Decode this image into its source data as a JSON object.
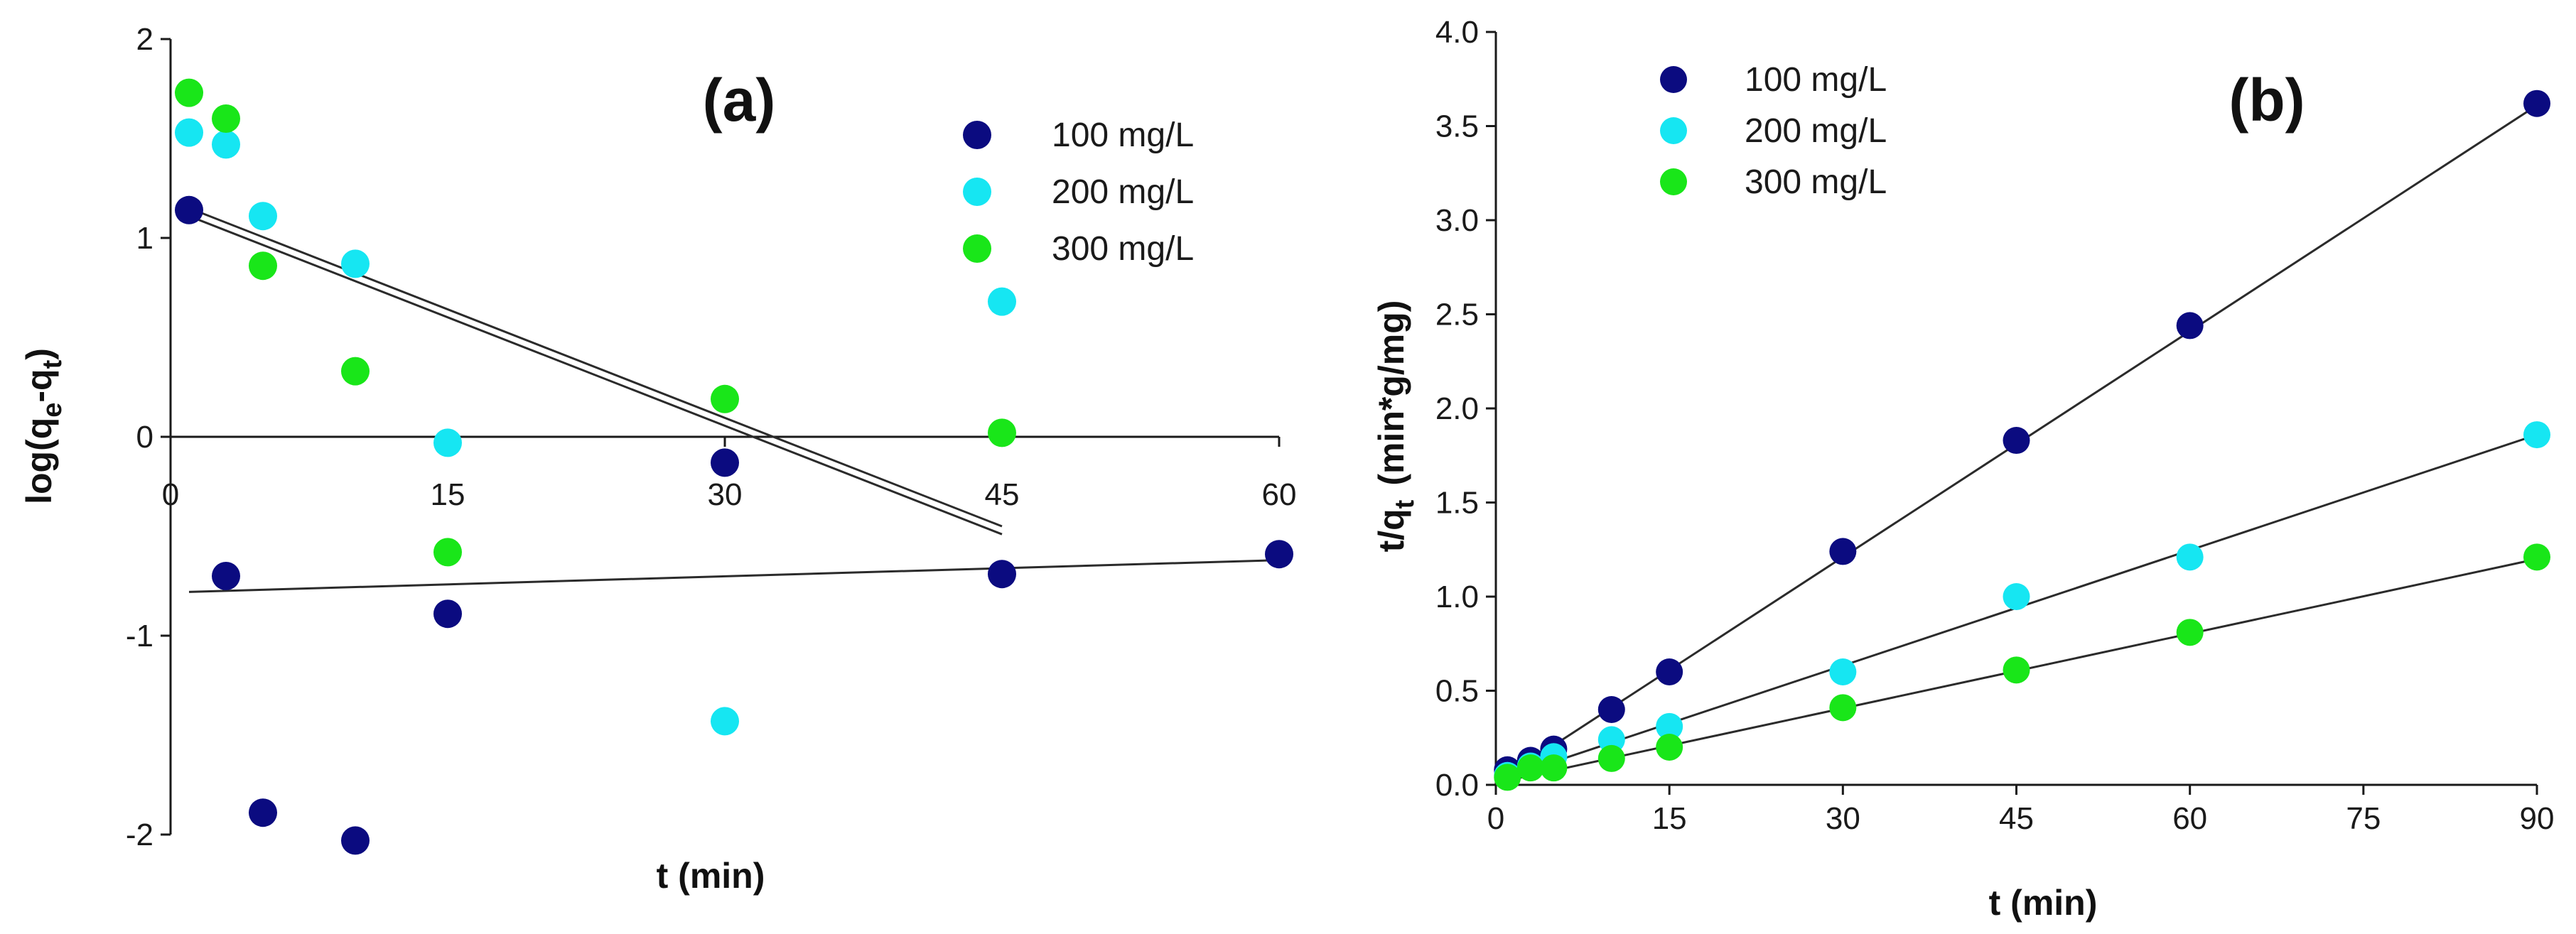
{
  "colors": {
    "100 mg/L": "#0b0b80",
    "200 mg/L": "#16e6f2",
    "300 mg/L": "#19e619",
    "axis": "#1a1a1a",
    "fit_line": "#2b2b2b"
  },
  "chart_data": [
    {
      "type": "scatter",
      "panel": "(a)",
      "title": "",
      "xlabel": "t (min)",
      "ylabel": "log(qe-qt)",
      "ylabel_main": "log(q",
      "ylabel_sub1": "e",
      "ylabel_mid": "-q",
      "ylabel_sub2": "t",
      "ylabel_close": ")",
      "xlim": [
        0,
        60
      ],
      "ylim": [
        -2,
        2
      ],
      "xticks": [
        "0",
        "15",
        "30",
        "45",
        "60"
      ],
      "yticks": [
        "-2",
        "-1",
        "0",
        "1",
        "2"
      ],
      "grid": false,
      "legend_position": "top-right",
      "series": [
        {
          "name": "100 mg/L",
          "x": [
            1,
            3,
            5,
            10,
            15,
            30,
            45,
            60
          ],
          "y": [
            1.14,
            -0.7,
            -1.89,
            -2.03,
            -0.89,
            -0.13,
            -0.69,
            -0.59
          ]
        },
        {
          "name": "200 mg/L",
          "x": [
            1,
            3,
            5,
            10,
            15,
            30,
            45
          ],
          "y": [
            1.53,
            1.47,
            1.11,
            0.87,
            -0.03,
            -1.43,
            0.68
          ]
        },
        {
          "name": "300 mg/L",
          "x": [
            1,
            3,
            5,
            10,
            15,
            30,
            45
          ],
          "y": [
            1.73,
            1.6,
            0.86,
            0.33,
            -0.58,
            0.19,
            0.02
          ]
        }
      ],
      "fit_lines": [
        {
          "x": [
            1,
            60
          ],
          "y": [
            -0.78,
            -0.62
          ]
        },
        {
          "x": [
            1,
            45
          ],
          "y": [
            1.11,
            -0.49
          ]
        },
        {
          "x": [
            1,
            45
          ],
          "y": [
            1.15,
            -0.45
          ]
        }
      ]
    },
    {
      "type": "scatter",
      "panel": "(b)",
      "title": "",
      "xlabel": "t (min)",
      "ylabel": "t/qt (min*g/mg)",
      "ylabel_main": "t/q",
      "ylabel_sub": "t",
      "ylabel_units": "(min*g/mg)",
      "xlim": [
        0,
        90
      ],
      "ylim": [
        0,
        4.0
      ],
      "xticks": [
        "0",
        "15",
        "30",
        "45",
        "60",
        "75",
        "90"
      ],
      "yticks": [
        "0.0",
        "0.5",
        "1.0",
        "1.5",
        "2.0",
        "2.5",
        "3.0",
        "3.5",
        "4.0"
      ],
      "grid": false,
      "legend_position": "top-left",
      "series": [
        {
          "name": "100 mg/L",
          "x": [
            1,
            3,
            5,
            10,
            15,
            30,
            45,
            60,
            90
          ],
          "y": [
            0.08,
            0.13,
            0.19,
            0.4,
            0.6,
            1.24,
            1.83,
            2.44,
            3.62
          ]
        },
        {
          "name": "200 mg/L",
          "x": [
            1,
            3,
            5,
            10,
            15,
            30,
            45,
            60,
            90
          ],
          "y": [
            0.05,
            0.1,
            0.15,
            0.24,
            0.31,
            0.6,
            1.0,
            1.21,
            1.86
          ]
        },
        {
          "name": "300 mg/L",
          "x": [
            1,
            3,
            5,
            10,
            15,
            30,
            45,
            60,
            90
          ],
          "y": [
            0.04,
            0.09,
            0.09,
            0.14,
            0.2,
            0.41,
            0.61,
            0.81,
            1.21
          ]
        }
      ],
      "fit_lines": [
        {
          "x": [
            0,
            90
          ],
          "y": [
            0.01,
            3.61
          ]
        },
        {
          "x": [
            0,
            90
          ],
          "y": [
            0.02,
            1.86
          ]
        },
        {
          "x": [
            0,
            90
          ],
          "y": [
            0.01,
            1.2
          ]
        }
      ]
    }
  ]
}
